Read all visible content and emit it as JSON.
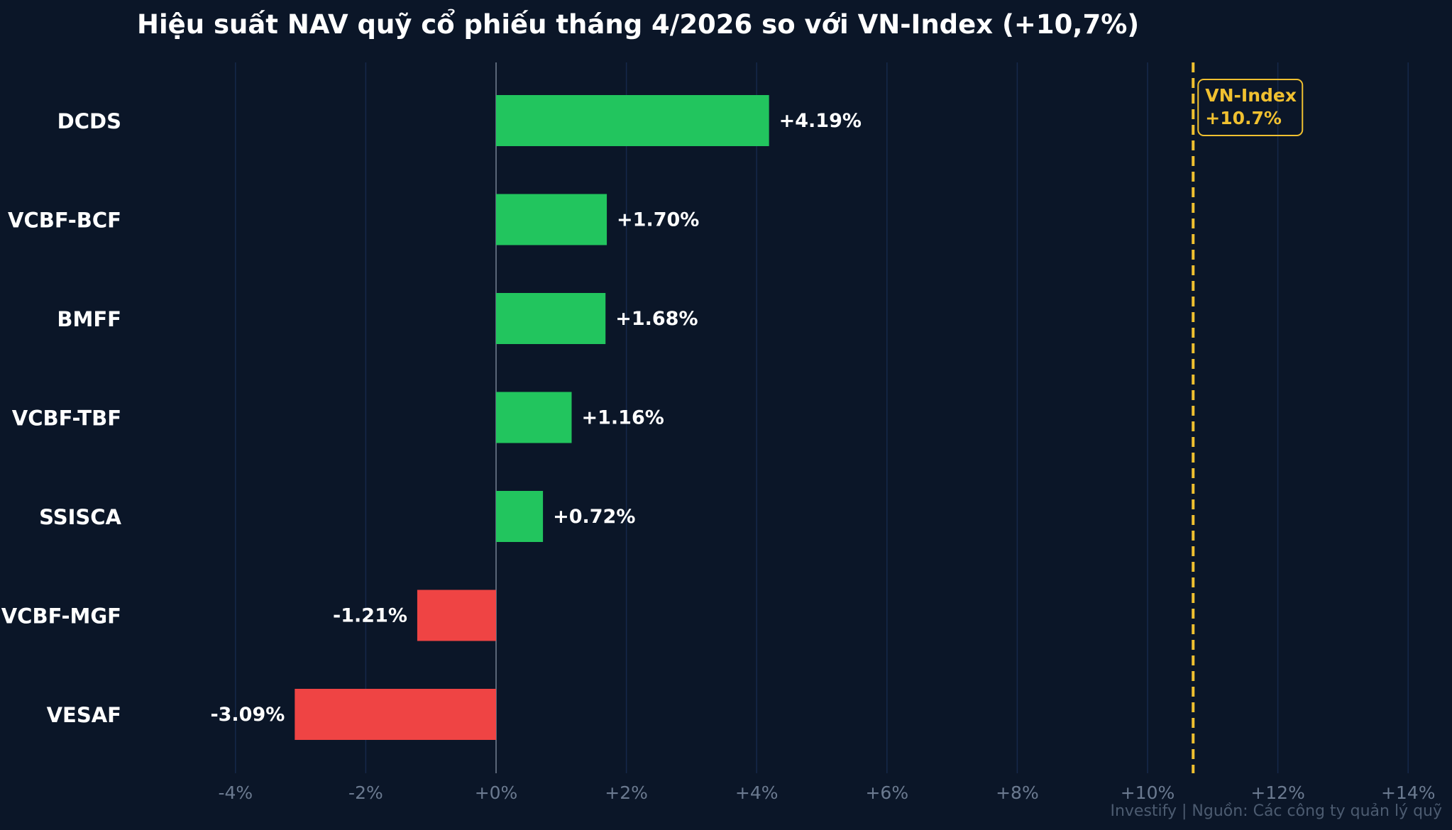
{
  "chart_data": {
    "type": "bar",
    "orientation": "horizontal",
    "title": "Hiệu suất NAV quỹ cổ phiếu tháng 4/2026 so với VN-Index (+10,7%)",
    "categories": [
      "DCDS",
      "VCBF-BCF",
      "BMFF",
      "VCBF-TBF",
      "SSISCA",
      "VCBF-MGF",
      "VESAF"
    ],
    "values": [
      4.19,
      1.7,
      1.68,
      1.16,
      0.72,
      -1.21,
      -3.09
    ],
    "value_labels": [
      "+4.19%",
      "+1.70%",
      "+1.68%",
      "+1.16%",
      "+0.72%",
      "-1.21%",
      "-3.09%"
    ],
    "xlim": [
      -4.6,
      14.3
    ],
    "x_ticks": [
      -4,
      -2,
      0,
      2,
      4,
      6,
      8,
      10,
      12,
      14
    ],
    "x_tick_labels": [
      "-4%",
      "-2%",
      "+0%",
      "+2%",
      "+4%",
      "+6%",
      "+8%",
      "+10%",
      "+12%",
      "+14%"
    ],
    "grid": "vertical",
    "reference_line": {
      "value": 10.7,
      "label_line1": "VN-Index",
      "label_line2": "+10.7%",
      "color": "#f0c030",
      "style": "dashed"
    },
    "colors": {
      "positive": "#22c55e",
      "negative": "#ef4444",
      "background": "#0b1628",
      "grid": "#16284a",
      "zero_line": "#5a6678"
    },
    "source_note": "Investify  |  Nguồn: Các công ty quản lý quỹ"
  }
}
